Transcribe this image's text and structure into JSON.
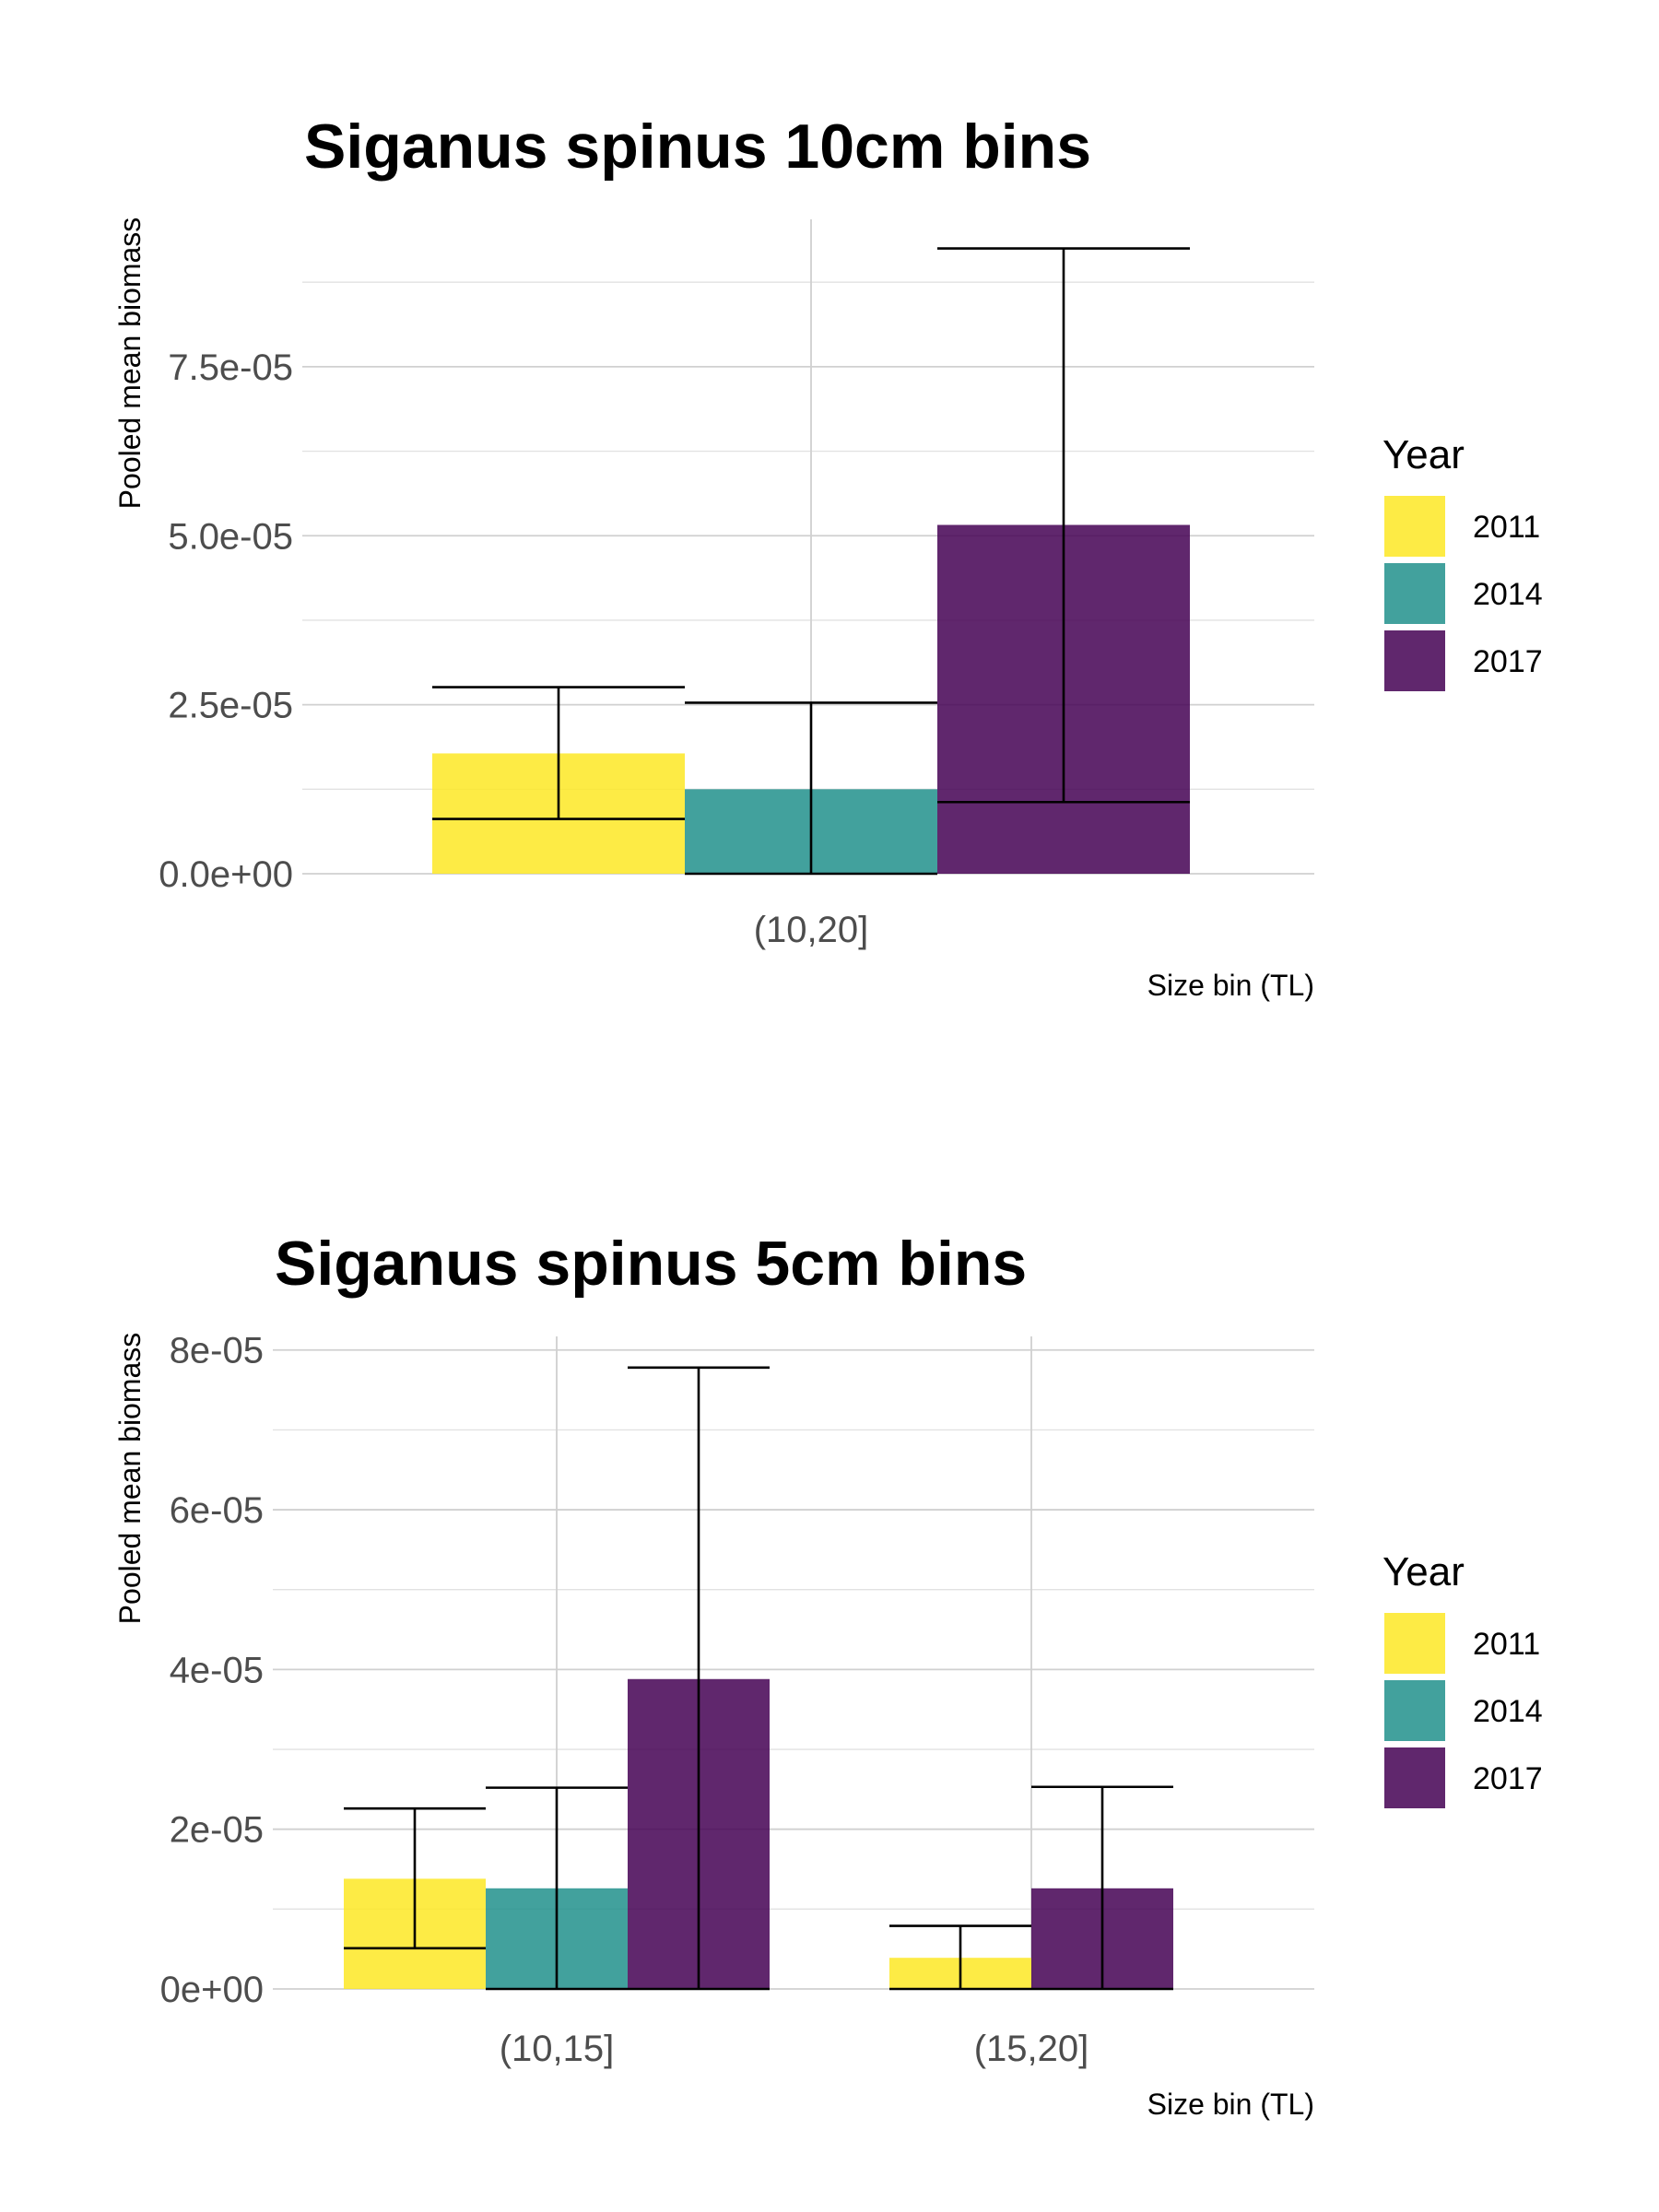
{
  "legend": {
    "title": "Year",
    "items": [
      {
        "label": "2011",
        "color": "#FDE725"
      },
      {
        "label": "2014",
        "color": "#21908C"
      },
      {
        "label": "2017",
        "color": "#440154"
      }
    ]
  },
  "chart_data": [
    {
      "type": "bar",
      "title": "Siganus spinus 10cm bins",
      "xlabel": "Size bin (TL)",
      "ylabel": "Pooled mean biomass",
      "categories": [
        "(10,20]"
      ],
      "y_ticks": [
        "0.0e+00",
        "2.5e-05",
        "5.0e-05",
        "7.5e-05"
      ],
      "y_tick_values": [
        0,
        2.5e-05,
        5e-05,
        7.5e-05
      ],
      "ylim": [
        0,
        9.68e-05
      ],
      "grid": true,
      "legend_position": "right",
      "series": [
        {
          "name": "2011",
          "values": [
            1.78e-05
          ],
          "error_low": [
            8.1e-06
          ],
          "error_high": [
            2.76e-05
          ]
        },
        {
          "name": "2014",
          "values": [
            1.25e-05
          ],
          "error_low": [
            0.0
          ],
          "error_high": [
            2.53e-05
          ]
        },
        {
          "name": "2017",
          "values": [
            5.16e-05
          ],
          "error_low": [
            1.06e-05
          ],
          "error_high": [
            9.25e-05
          ]
        }
      ]
    },
    {
      "type": "bar",
      "title": "Siganus spinus 5cm bins",
      "xlabel": "Size bin (TL)",
      "ylabel": "Pooled mean biomass",
      "categories": [
        "(10,15]",
        "(15,20]"
      ],
      "y_ticks": [
        "0e+00",
        "2e-05",
        "4e-05",
        "6e-05",
        "8e-05"
      ],
      "y_tick_values": [
        0,
        2e-05,
        4e-05,
        6e-05,
        8e-05
      ],
      "ylim": [
        0,
        8.17e-05
      ],
      "grid": true,
      "legend_position": "right",
      "series": [
        {
          "name": "2011",
          "values": [
            1.38e-05,
            3.9e-06
          ],
          "error_low": [
            5.1e-06,
            0.0
          ],
          "error_high": [
            2.26e-05,
            7.9e-06
          ]
        },
        {
          "name": "2014",
          "values": [
            1.26e-05,
            null
          ],
          "error_low": [
            0.0,
            null
          ],
          "error_high": [
            2.52e-05,
            null
          ]
        },
        {
          "name": "2017",
          "values": [
            3.88e-05,
            1.26e-05
          ],
          "error_low": [
            0.0,
            0.0
          ],
          "error_high": [
            7.78e-05,
            2.53e-05
          ]
        }
      ]
    }
  ]
}
